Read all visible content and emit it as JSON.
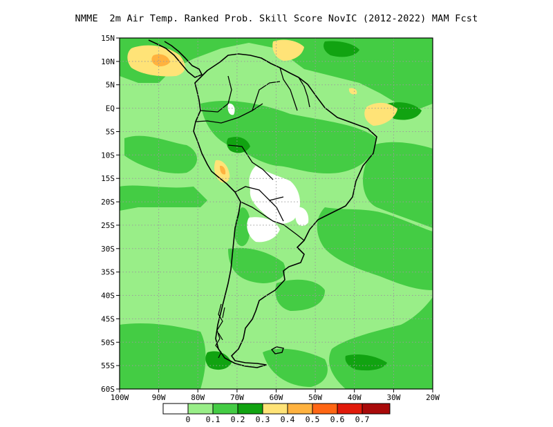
{
  "title": "NMME  2m Air Temp. Ranked Prob. Skill Score NovIC (2012-2022) MAM Fcst",
  "map": {
    "lat_labels": [
      "15N",
      "10N",
      "5N",
      "EQ",
      "5S",
      "10S",
      "15S",
      "20S",
      "25S",
      "30S",
      "35S",
      "40S",
      "45S",
      "50S",
      "55S",
      "60S"
    ],
    "lon_labels": [
      "100W",
      "90W",
      "80W",
      "70W",
      "60W",
      "50W",
      "40W",
      "30W",
      "20W"
    ],
    "background_class": "0.1-0.2",
    "grid": "dotted"
  },
  "colorbar": {
    "labels": [
      "0",
      "0.1",
      "0.2",
      "0.3",
      "0.4",
      "0.5",
      "0.6",
      "0.7"
    ],
    "colors": [
      "#ffffff",
      "#99ee88",
      "#44cc44",
      "#11a311",
      "#ffe377",
      "#ffb23f",
      "#ff6614",
      "#e11a0a",
      "#a90a0a"
    ]
  },
  "colors": {
    "c01": "#99ee88",
    "c12": "#44cc44",
    "c23": "#11a311",
    "c34": "#ffe377",
    "c45": "#ffb23f",
    "c0": "#ffffff",
    "grid": "#9a9a9a",
    "coast": "#000000"
  }
}
